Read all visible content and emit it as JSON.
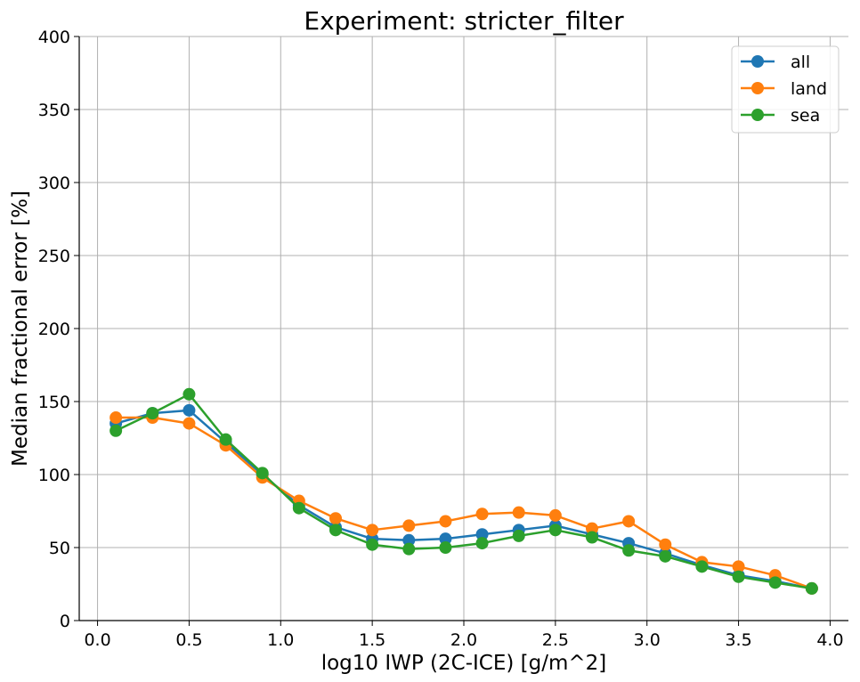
{
  "chart_data": {
    "type": "line",
    "title": "Experiment: stricter_filter",
    "xlabel": "log10 IWP (2C-ICE) [g/m^2]",
    "ylabel": "Median fractional error [%]",
    "xlim": [
      -0.1,
      4.1
    ],
    "ylim": [
      0,
      400
    ],
    "xticks": [
      0.0,
      0.5,
      1.0,
      1.5,
      2.0,
      2.5,
      3.0,
      3.5,
      4.0
    ],
    "xtick_labels": [
      "0.0",
      "0.5",
      "1.0",
      "1.5",
      "2.0",
      "2.5",
      "3.0",
      "3.5",
      "4.0"
    ],
    "yticks": [
      0,
      50,
      100,
      150,
      200,
      250,
      300,
      350,
      400
    ],
    "ytick_labels": [
      "0",
      "50",
      "100",
      "150",
      "200",
      "250",
      "300",
      "350",
      "400"
    ],
    "grid": true,
    "legend_position": "top-right",
    "x": [
      0.1,
      0.3,
      0.5,
      0.7,
      0.9,
      1.1,
      1.3,
      1.5,
      1.7,
      1.9,
      2.1,
      2.3,
      2.5,
      2.7,
      2.9,
      3.1,
      3.3,
      3.5,
      3.7,
      3.9
    ],
    "series": [
      {
        "name": "all",
        "color": "#1f77b4",
        "values": [
          135,
          142,
          144,
          122,
          100,
          79,
          64,
          56,
          55,
          56,
          59,
          62,
          65,
          59,
          53,
          46,
          38,
          31,
          27,
          22
        ]
      },
      {
        "name": "land",
        "color": "#ff7f0e",
        "values": [
          139,
          139,
          135,
          120,
          98,
          82,
          70,
          62,
          65,
          68,
          73,
          74,
          72,
          63,
          68,
          52,
          40,
          37,
          31,
          22
        ]
      },
      {
        "name": "sea",
        "color": "#2ca02c",
        "values": [
          130,
          142,
          155,
          124,
          101,
          77,
          62,
          52,
          49,
          50,
          53,
          58,
          62,
          57,
          48,
          44,
          37,
          30,
          26,
          22
        ]
      }
    ]
  }
}
